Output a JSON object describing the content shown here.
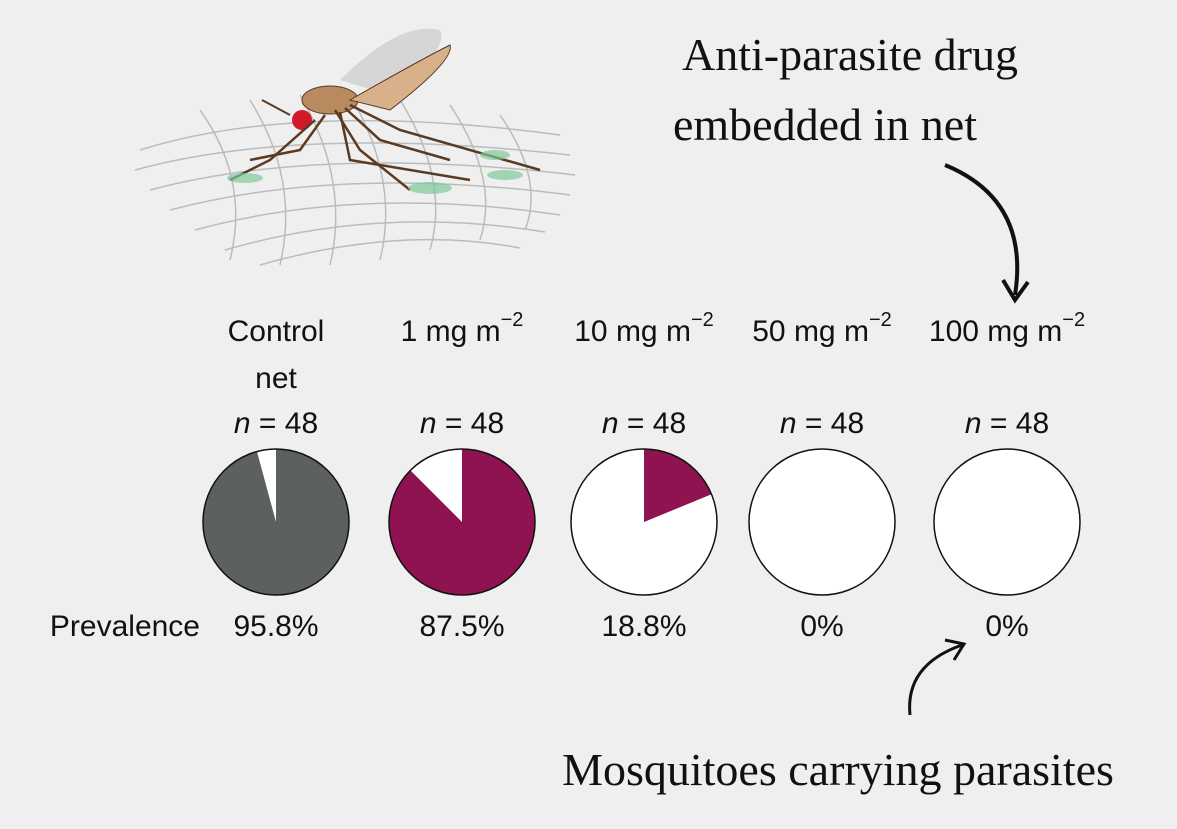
{
  "annotations": {
    "drug": [
      "Anti-parasite drug",
      "embedded in net"
    ],
    "carrying": "Mosquitoes carrying parasites"
  },
  "row_label": "Prevalence",
  "n_symbol": "n",
  "equals": "=",
  "groups": [
    {
      "label": [
        "Control",
        "net"
      ],
      "n": 48,
      "prevalence": 95.8,
      "prevalence_label": "95.8%",
      "color": "#5d6060"
    },
    {
      "label": [
        "1 mg m"
      ],
      "exponent": "−2",
      "n": 48,
      "prevalence": 87.5,
      "prevalence_label": "87.5%",
      "color": "#8e1350"
    },
    {
      "label": [
        "10 mg m"
      ],
      "exponent": "−2",
      "n": 48,
      "prevalence": 18.8,
      "prevalence_label": "18.8%",
      "color": "#8e1350"
    },
    {
      "label": [
        "50 mg m"
      ],
      "exponent": "−2",
      "n": 48,
      "prevalence": 0,
      "prevalence_label": "0%",
      "color": "#8e1350"
    },
    {
      "label": [
        "100 mg m"
      ],
      "exponent": "−2",
      "n": 48,
      "prevalence": 0,
      "prevalence_label": "0%",
      "color": "#8e1350"
    }
  ]
}
